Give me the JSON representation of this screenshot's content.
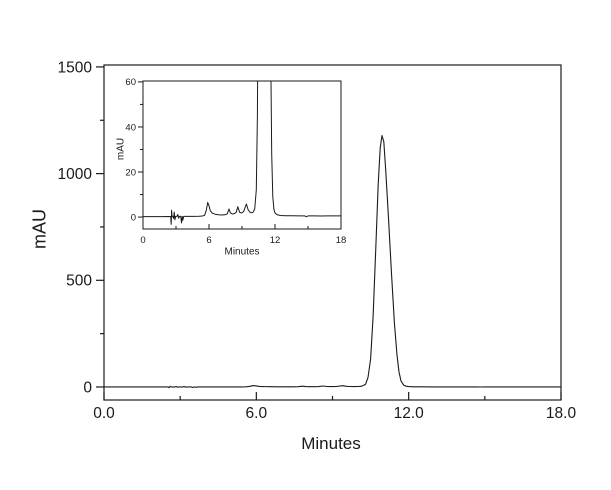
{
  "window": {
    "background": "#ffffff"
  },
  "chart_data": [
    {
      "id": "main-chromatogram",
      "type": "line",
      "title": "",
      "xlabel": "Minutes",
      "ylabel": "mAU",
      "xlim": [
        0,
        18
      ],
      "ylim": [
        -61,
        1509
      ],
      "x_major_ticks": [
        0,
        6,
        12,
        18
      ],
      "x_tick_labels": [
        "0.0",
        "6.0",
        "12.0",
        "18.0"
      ],
      "x_minor_ticks": [
        3,
        9,
        15
      ],
      "y_major_ticks": [
        0,
        500,
        1000,
        1500
      ],
      "y_tick_labels": [
        "0",
        "500",
        "1000",
        "1500"
      ],
      "y_minor_ticks": [
        250,
        750,
        1250
      ],
      "grid": false,
      "legend": "none",
      "line_color": "#1a1a1a",
      "series": [
        {
          "name": "chromatogram-trace",
          "points": [
            [
              0,
              0.2
            ],
            [
              0.6,
              0.2
            ],
            [
              1.2,
              0.2
            ],
            [
              1.8,
              0.2
            ],
            [
              2.3,
              0.25
            ],
            [
              2.52,
              0.2
            ],
            [
              2.56,
              -3.2
            ],
            [
              2.6,
              3.0
            ],
            [
              2.64,
              0.4
            ],
            [
              2.72,
              0.3
            ],
            [
              2.78,
              -0.6
            ],
            [
              2.84,
              2.2
            ],
            [
              2.9,
              -1.2
            ],
            [
              2.96,
              0.3
            ],
            [
              3.08,
              0.3
            ],
            [
              3.16,
              1.2
            ],
            [
              3.24,
              -0.5
            ],
            [
              3.32,
              0.3
            ],
            [
              3.44,
              0.4
            ],
            [
              3.5,
              -2.6
            ],
            [
              3.56,
              0.3
            ],
            [
              3.62,
              -1.4
            ],
            [
              3.7,
              0.3
            ],
            [
              4.0,
              0.3
            ],
            [
              4.6,
              0.3
            ],
            [
              5.1,
              0.35
            ],
            [
              5.4,
              0.45
            ],
            [
              5.6,
              0.8
            ],
            [
              5.75,
              3.0
            ],
            [
              5.88,
              6.5
            ],
            [
              6.0,
              5.0
            ],
            [
              6.12,
              2.8
            ],
            [
              6.3,
              1.7
            ],
            [
              6.55,
              1.25
            ],
            [
              6.85,
              1.0
            ],
            [
              7.15,
              0.9
            ],
            [
              7.45,
              1.0
            ],
            [
              7.65,
              1.4
            ],
            [
              7.82,
              3.6
            ],
            [
              7.95,
              1.9
            ],
            [
              8.1,
              1.35
            ],
            [
              8.28,
              1.5
            ],
            [
              8.46,
              2.0
            ],
            [
              8.62,
              4.6
            ],
            [
              8.78,
              2.1
            ],
            [
              8.95,
              1.8
            ],
            [
              9.15,
              2.4
            ],
            [
              9.4,
              5.8
            ],
            [
              9.55,
              3.3
            ],
            [
              9.7,
              2.3
            ],
            [
              9.85,
              1.9
            ],
            [
              10.0,
              2.1
            ],
            [
              10.15,
              3.6
            ],
            [
              10.3,
              12
            ],
            [
              10.4,
              45
            ],
            [
              10.5,
              130
            ],
            [
              10.6,
              330
            ],
            [
              10.7,
              640
            ],
            [
              10.8,
              950
            ],
            [
              10.88,
              1120
            ],
            [
              10.95,
              1178
            ],
            [
              11.02,
              1150
            ],
            [
              11.1,
              1010
            ],
            [
              11.2,
              800
            ],
            [
              11.32,
              540
            ],
            [
              11.44,
              300
            ],
            [
              11.54,
              150
            ],
            [
              11.62,
              70
            ],
            [
              11.7,
              28
            ],
            [
              11.8,
              9
            ],
            [
              11.9,
              3.5
            ],
            [
              12.0,
              1.8
            ],
            [
              12.2,
              1.0
            ],
            [
              12.5,
              0.7
            ],
            [
              13.0,
              0.6
            ],
            [
              13.6,
              0.55
            ],
            [
              14.2,
              0.5
            ],
            [
              14.7,
              0.5
            ],
            [
              14.85,
              0.15
            ],
            [
              15.0,
              0.5
            ],
            [
              15.6,
              0.5
            ],
            [
              16.2,
              0.45
            ],
            [
              16.8,
              0.5
            ],
            [
              17.4,
              0.5
            ],
            [
              18.0,
              0.5
            ]
          ]
        }
      ]
    },
    {
      "id": "inset-chromatogram",
      "type": "line",
      "title": "",
      "xlabel": "Minutes",
      "ylabel": "mAU",
      "xlim": [
        0,
        18
      ],
      "ylim": [
        -5.3,
        60.4
      ],
      "x_major_ticks": [
        0,
        6,
        12,
        18
      ],
      "x_tick_labels": [
        "0",
        "6",
        "12",
        "18"
      ],
      "x_minor_ticks": [
        3,
        9,
        15
      ],
      "y_major_ticks": [
        0,
        20,
        40,
        60
      ],
      "y_tick_labels": [
        "0",
        "20",
        "40",
        "60"
      ],
      "y_minor_ticks": [
        10,
        30,
        50
      ],
      "grid": false,
      "legend": "none",
      "line_color": "#1a1a1a",
      "series": [
        {
          "name": "chromatogram-trace-zoomed",
          "points": "same-as-main"
        }
      ]
    }
  ]
}
